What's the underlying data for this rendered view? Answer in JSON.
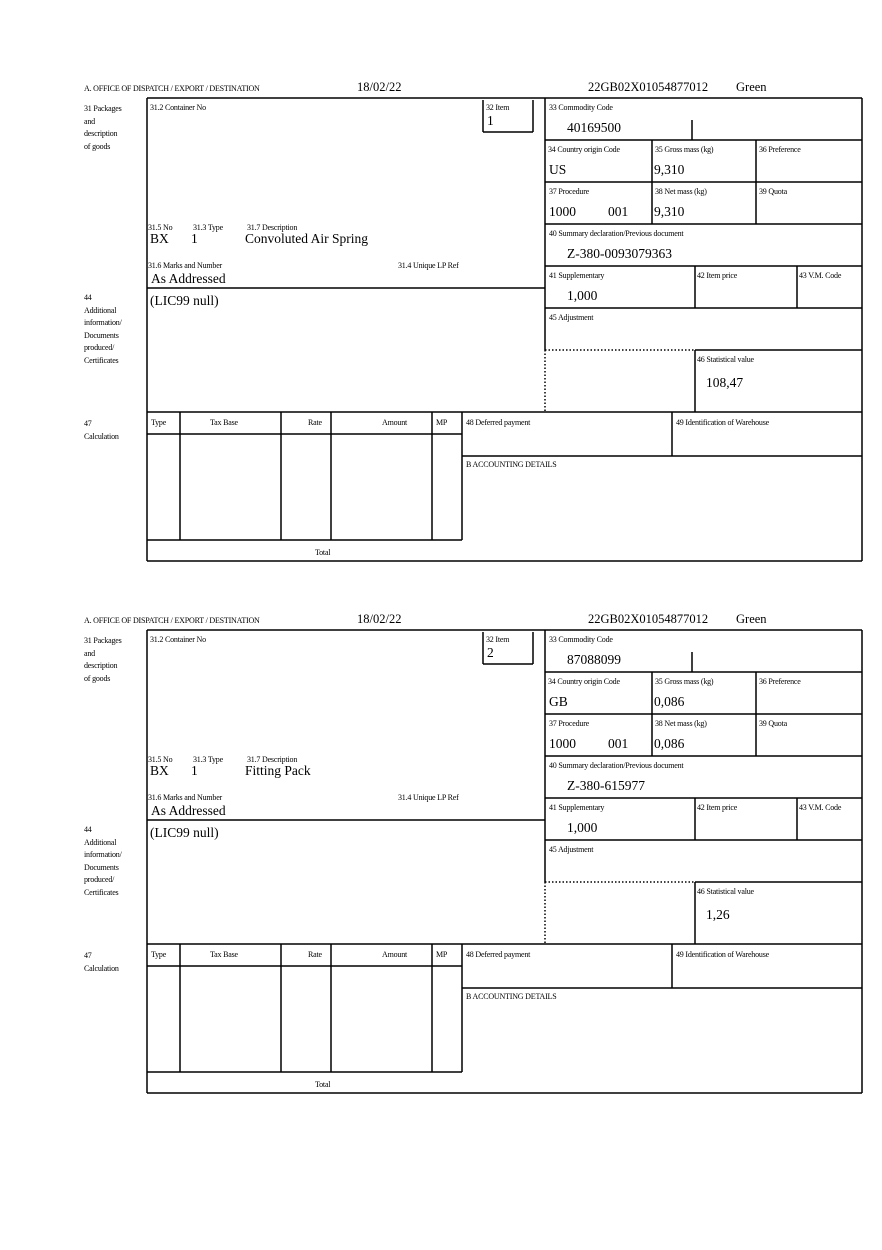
{
  "labels": {
    "header": "A.  OFFICE OF DISPATCH / EXPORT / DESTINATION",
    "packages": "31 Packages\nand\ndescription\nof goods",
    "container": "31.2 Container No",
    "item": "32 Item",
    "commodity": "33 Commodity Code",
    "country": "34 Country origin Code",
    "gross": "35 Gross mass (kg)",
    "preference": "36 Preference",
    "procedure": "37 Procedure",
    "net": "38 Net mass (kg)",
    "quota": "39 Quota",
    "summary": "40 Summary declaration/Previous document",
    "supplementary": "41 Supplementary",
    "item_price": "42 Item price",
    "vm_code": "43 V.M. Code",
    "adjustment": "45 Adjustment",
    "statistical": "46 Statistical value",
    "no": "31.5 No",
    "type": "31.3 Type",
    "description": "31.7 Description",
    "marks": "31.6 Marks and Number",
    "unique_ref": "31.4 Unique LP Ref",
    "additional": "44\nAdditional\ninformation/\nDocuments\nproduced/\nCertificates",
    "calculation": "47\nCalculation",
    "calc_type": "Type",
    "calc_tax_base": "Tax Base",
    "calc_rate": "Rate",
    "calc_amount": "Amount",
    "calc_mp": "MP",
    "deferred": "48 Deferred payment",
    "warehouse": "49 Identification of Warehouse",
    "accounting": "B ACCOUNTING DETAILS",
    "total": "Total"
  },
  "forms": [
    {
      "date": "18/02/22",
      "reference": "22GB02X01054877012",
      "route": "Green",
      "item": "1",
      "commodity_code": "40169500",
      "country_origin": "US",
      "gross_mass": "9,310",
      "procedure": "1000",
      "procedure_extra": "001",
      "net_mass": "9,310",
      "summary_doc": "Z-380-0093079363",
      "supplementary": "1,000",
      "statistical_value": "108,47",
      "pkg_no": "BX",
      "pkg_type": "1",
      "description": "Convoluted Air Spring",
      "marks": "As Addressed",
      "additional_info": "(LIC99 null)"
    },
    {
      "date": "18/02/22",
      "reference": "22GB02X01054877012",
      "route": "Green",
      "item": "2",
      "commodity_code": "87088099",
      "country_origin": "GB",
      "gross_mass": "0,086",
      "procedure": "1000",
      "procedure_extra": "001",
      "net_mass": "0,086",
      "summary_doc": "Z-380-615977",
      "supplementary": "1,000",
      "statistical_value": "1,26",
      "pkg_no": "BX",
      "pkg_type": "1",
      "description": "Fitting Pack",
      "marks": "As Addressed",
      "additional_info": "(LIC99 null)"
    }
  ]
}
